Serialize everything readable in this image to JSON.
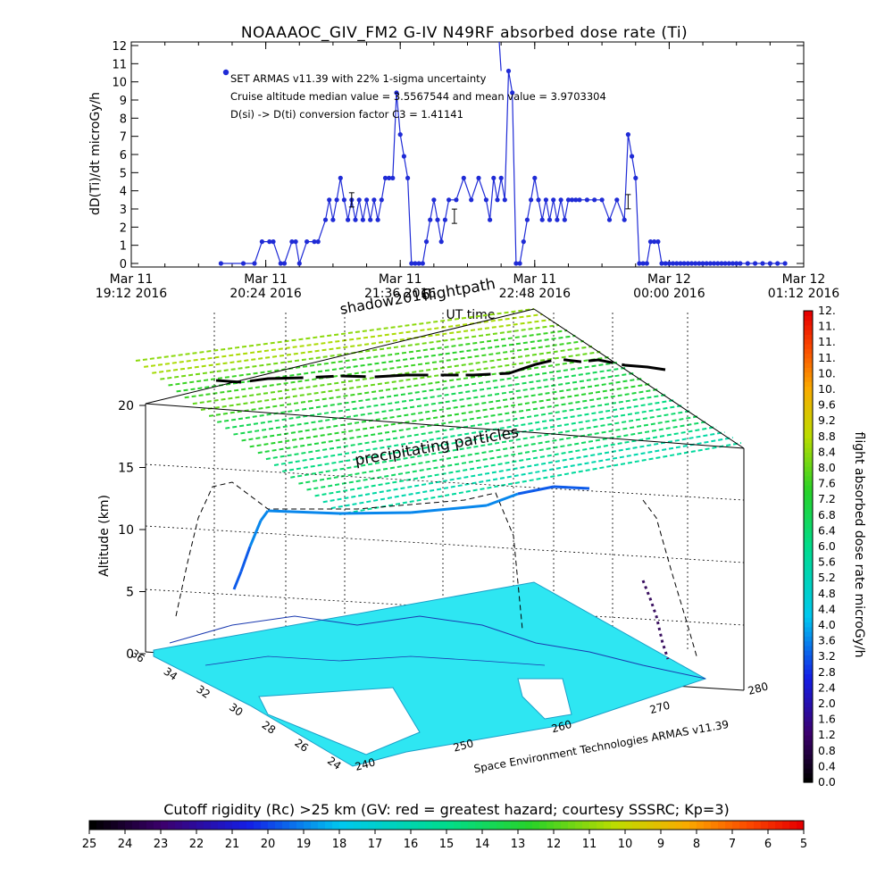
{
  "chart_data": [
    {
      "type": "line",
      "title": "NOAAAOC_GIV_FM2 G-IV    N49RF   absorbed dose rate (Ti)",
      "xlabel": "UT time",
      "ylabel": "dD(Ti)/dt microGy/h",
      "ylim": [
        0,
        12
      ],
      "yticks": [
        "0",
        "1",
        "2",
        "3",
        "4",
        "5",
        "6",
        "7",
        "8",
        "9",
        "10",
        "11",
        "12"
      ],
      "xticks": [
        {
          "line1": "Mar 11",
          "line2": "19:12 2016"
        },
        {
          "line1": "Mar 11",
          "line2": "20:24 2016"
        },
        {
          "line1": "Mar 11",
          "line2": "21:36 2016"
        },
        {
          "line1": "Mar 11",
          "line2": "22:48 2016"
        },
        {
          "line1": "Mar 12",
          "line2": "00:00 2016"
        },
        {
          "line1": "Mar 12",
          "line2": "01:12 2016"
        }
      ],
      "xlim_minutes": [
        0,
        360
      ],
      "annotations": [
        "SET ARMAS v11.39 with 22% 1-sigma uncertainty",
        "Cruise altitude median value = 3.5567544 and mean value = 3.9703304",
        "D(si) -> D(ti) conversion factor C3 = 1.41141"
      ],
      "series_color": "#1f2bd6",
      "x": [
        48,
        60,
        66,
        70,
        74,
        76,
        80,
        82,
        86,
        88,
        90,
        94,
        98,
        100,
        104,
        106,
        108,
        110,
        112,
        114,
        116,
        118,
        120,
        122,
        124,
        126,
        128,
        130,
        132,
        134,
        136,
        138,
        140,
        142,
        144,
        146,
        148,
        150,
        152,
        154,
        156,
        158,
        160,
        162,
        164,
        166,
        168,
        170,
        174,
        178,
        182,
        186,
        190,
        192,
        194,
        196,
        198,
        200,
        202,
        204,
        206,
        208,
        210,
        212,
        214,
        216,
        218,
        220,
        222,
        224,
        226,
        228,
        230,
        232,
        234,
        236,
        238,
        240,
        244,
        248,
        252,
        256,
        260,
        264,
        266,
        268,
        270,
        272,
        274,
        276,
        278,
        280,
        282,
        284,
        286,
        288,
        290,
        292,
        294,
        296,
        298,
        300,
        302,
        304,
        306,
        308,
        310,
        312,
        314,
        316,
        318,
        320,
        322,
        324,
        326,
        330,
        334,
        338,
        342,
        346,
        350
      ],
      "values": [
        0,
        0,
        0,
        1.2,
        1.2,
        1.2,
        0,
        0,
        1.2,
        1.2,
        0,
        1.2,
        1.2,
        1.2,
        2.4,
        3.5,
        2.4,
        3.5,
        4.7,
        3.5,
        2.4,
        3.5,
        2.4,
        3.5,
        2.4,
        3.5,
        2.4,
        3.5,
        2.4,
        3.5,
        4.7,
        4.7,
        4.7,
        9.4,
        7.1,
        5.9,
        4.7,
        0,
        0,
        0,
        0,
        1.2,
        2.4,
        3.5,
        2.4,
        1.2,
        2.4,
        3.5,
        3.5,
        4.7,
        3.5,
        4.7,
        3.5,
        2.4,
        4.7,
        3.5,
        4.7,
        3.5,
        10.6,
        9.4,
        0,
        0,
        1.2,
        2.4,
        3.5,
        4.7,
        3.5,
        2.4,
        3.5,
        2.4,
        3.5,
        2.4,
        3.5,
        2.4,
        3.5,
        3.5,
        3.5,
        3.5,
        3.5,
        3.5,
        3.5,
        2.4,
        3.5,
        2.4,
        7.1,
        5.9,
        4.7,
        0,
        0,
        0,
        1.2,
        1.2,
        1.2,
        0,
        0,
        0,
        0,
        0,
        0,
        0,
        0,
        0,
        0,
        0,
        0,
        0,
        0,
        0,
        0,
        0,
        0,
        0,
        0,
        0,
        0,
        0,
        0,
        0,
        0,
        0,
        0
      ],
      "upper_labels": [
        "flightpath",
        "shadow2016"
      ]
    },
    {
      "type": "scatter",
      "title": "",
      "ylabel": "Altitude (km)",
      "zticks": [
        "0",
        "5",
        "10",
        "15",
        "20"
      ],
      "lat_ticks": [
        "24",
        "26",
        "28",
        "30",
        "32",
        "34",
        "36"
      ],
      "lon_ticks": [
        "240",
        "250",
        "260",
        "270",
        "280"
      ],
      "annotations": [
        "precipitating particles",
        "Space Environment Technologies ARMAS v11.39"
      ],
      "colorbar": {
        "label": "flight absorbed dose rate microGy/h",
        "ticks": [
          "0.0",
          "0.4",
          "0.8",
          "1.2",
          "1.6",
          "2.0",
          "2.4",
          "2.8",
          "3.2",
          "3.6",
          "4.0",
          "4.4",
          "4.8",
          "5.2",
          "5.6",
          "6.0",
          "6.4",
          "6.8",
          "7.2",
          "7.6",
          "8.0",
          "8.4",
          "8.8",
          "9.2",
          "9.6",
          "10.",
          "10.",
          "11.",
          "11.",
          "11.",
          "12."
        ]
      },
      "flight_track_alt_km": [
        12,
        12,
        12,
        12,
        12
      ],
      "flight_track_dose": [
        3.2,
        3.6,
        3.6,
        3.6,
        3.2
      ]
    },
    {
      "type": "heatmap",
      "title": "Cutoff rigidity (Rc) >25 km (GV: red = greatest hazard; courtesy SSSRC; Kp=3)",
      "ticks": [
        "25",
        "24",
        "23",
        "22",
        "21",
        "20",
        "19",
        "18",
        "17",
        "16",
        "15",
        "14",
        "13",
        "12",
        "11",
        "10",
        "9",
        "8",
        "7",
        "6",
        "5"
      ]
    }
  ]
}
